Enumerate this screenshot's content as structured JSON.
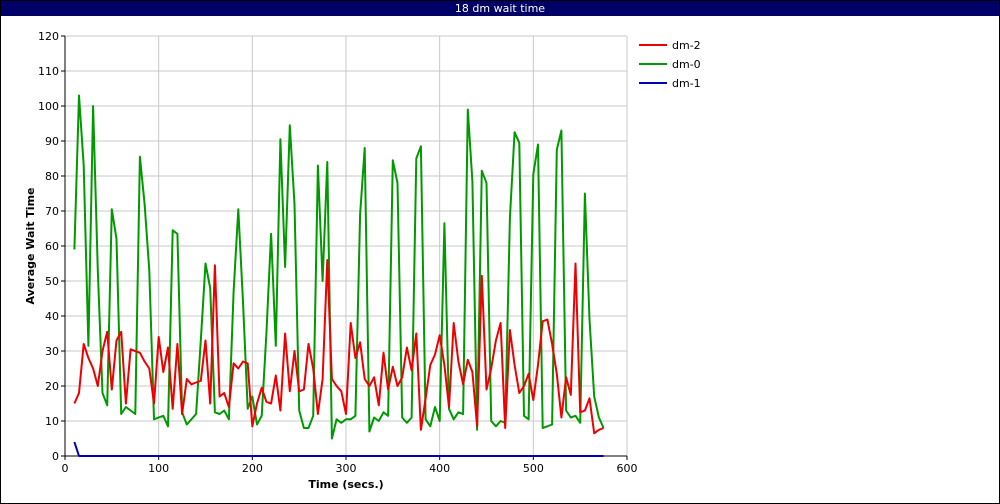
{
  "window": {
    "title": "18 dm wait time"
  },
  "chart_data": {
    "type": "line",
    "title": "18 dm wait time",
    "xlabel": "Time (secs.)",
    "ylabel": "Average Wait Time",
    "xlim": [
      0,
      600
    ],
    "ylim": [
      0,
      120
    ],
    "x_ticks": [
      0,
      100,
      200,
      300,
      400,
      500,
      600
    ],
    "y_ticks": [
      0,
      10,
      20,
      30,
      40,
      50,
      60,
      70,
      80,
      90,
      100,
      110,
      120
    ],
    "grid": true,
    "legend_position": "right",
    "series": [
      {
        "name": "dm-2",
        "color": "#ee0000",
        "points": [
          [
            10,
            15
          ],
          [
            15,
            18
          ],
          [
            20,
            32
          ],
          [
            25,
            28
          ],
          [
            30,
            25
          ],
          [
            35,
            20
          ],
          [
            40,
            30
          ],
          [
            45,
            35.5
          ],
          [
            50,
            19
          ],
          [
            55,
            33
          ],
          [
            60,
            35.5
          ],
          [
            65,
            15
          ],
          [
            70,
            30.5
          ],
          [
            80,
            29.5
          ],
          [
            85,
            27
          ],
          [
            90,
            25
          ],
          [
            95,
            15
          ],
          [
            100,
            34
          ],
          [
            105,
            24
          ],
          [
            110,
            31
          ],
          [
            115,
            13.5
          ],
          [
            120,
            32
          ],
          [
            125,
            12
          ],
          [
            130,
            22
          ],
          [
            135,
            20.5
          ],
          [
            140,
            21
          ],
          [
            145,
            21.5
          ],
          [
            150,
            33
          ],
          [
            155,
            15
          ],
          [
            160,
            54.5
          ],
          [
            165,
            17
          ],
          [
            170,
            18
          ],
          [
            175,
            14
          ],
          [
            180,
            26.5
          ],
          [
            185,
            25
          ],
          [
            190,
            27
          ],
          [
            195,
            26.5
          ],
          [
            200,
            8.5
          ],
          [
            205,
            15
          ],
          [
            210,
            19.5
          ],
          [
            215,
            15.5
          ],
          [
            220,
            15
          ],
          [
            225,
            23
          ],
          [
            230,
            13
          ],
          [
            235,
            35
          ],
          [
            240,
            18.5
          ],
          [
            245,
            30
          ],
          [
            250,
            18.5
          ],
          [
            255,
            19
          ],
          [
            260,
            32
          ],
          [
            265,
            25
          ],
          [
            270,
            12
          ],
          [
            275,
            22
          ],
          [
            280,
            56
          ],
          [
            285,
            22
          ],
          [
            290,
            20
          ],
          [
            295,
            18.5
          ],
          [
            300,
            12
          ],
          [
            305,
            38
          ],
          [
            310,
            28
          ],
          [
            315,
            32.5
          ],
          [
            320,
            22
          ],
          [
            325,
            20
          ],
          [
            330,
            22.5
          ],
          [
            335,
            14.5
          ],
          [
            340,
            29.5
          ],
          [
            345,
            19
          ],
          [
            350,
            25.5
          ],
          [
            355,
            20
          ],
          [
            360,
            22.5
          ],
          [
            365,
            31
          ],
          [
            370,
            24.5
          ],
          [
            375,
            35
          ],
          [
            380,
            7.5
          ],
          [
            385,
            16.5
          ],
          [
            390,
            26
          ],
          [
            395,
            29
          ],
          [
            400,
            34.5
          ],
          [
            405,
            26
          ],
          [
            410,
            14
          ],
          [
            415,
            38
          ],
          [
            420,
            27
          ],
          [
            425,
            20.5
          ],
          [
            430,
            27.5
          ],
          [
            435,
            24
          ],
          [
            440,
            8.5
          ],
          [
            445,
            51.5
          ],
          [
            450,
            19
          ],
          [
            455,
            25
          ],
          [
            460,
            33
          ],
          [
            465,
            38
          ],
          [
            470,
            8
          ],
          [
            475,
            36
          ],
          [
            480,
            26
          ],
          [
            485,
            18
          ],
          [
            490,
            20
          ],
          [
            495,
            23.5
          ],
          [
            500,
            16
          ],
          [
            505,
            26
          ],
          [
            510,
            38.5
          ],
          [
            515,
            39
          ],
          [
            520,
            32
          ],
          [
            525,
            23.5
          ],
          [
            530,
            11
          ],
          [
            535,
            22.5
          ],
          [
            540,
            17.5
          ],
          [
            545,
            55
          ],
          [
            550,
            12.5
          ],
          [
            555,
            13
          ],
          [
            560,
            16.5
          ],
          [
            565,
            6.5
          ],
          [
            570,
            7.5
          ],
          [
            575,
            8
          ]
        ]
      },
      {
        "name": "dm-0",
        "color": "#009900",
        "points": [
          [
            10,
            59
          ],
          [
            15,
            103
          ],
          [
            20,
            83
          ],
          [
            25,
            31.5
          ],
          [
            30,
            100
          ],
          [
            35,
            53
          ],
          [
            40,
            18
          ],
          [
            45,
            14.5
          ],
          [
            50,
            70.5
          ],
          [
            55,
            62
          ],
          [
            60,
            12
          ],
          [
            65,
            14
          ],
          [
            70,
            13
          ],
          [
            75,
            12
          ],
          [
            80,
            85.5
          ],
          [
            85,
            72
          ],
          [
            90,
            53
          ],
          [
            95,
            10.5
          ],
          [
            100,
            11
          ],
          [
            105,
            11.5
          ],
          [
            110,
            8.5
          ],
          [
            115,
            64.5
          ],
          [
            120,
            63.5
          ],
          [
            125,
            12.5
          ],
          [
            130,
            9
          ],
          [
            135,
            10.5
          ],
          [
            140,
            12
          ],
          [
            145,
            33
          ],
          [
            150,
            55
          ],
          [
            155,
            48
          ],
          [
            160,
            12.5
          ],
          [
            165,
            12
          ],
          [
            170,
            13
          ],
          [
            175,
            10.5
          ],
          [
            180,
            47
          ],
          [
            185,
            70.5
          ],
          [
            190,
            44
          ],
          [
            195,
            13.5
          ],
          [
            200,
            17
          ],
          [
            205,
            9
          ],
          [
            210,
            11.5
          ],
          [
            215,
            35
          ],
          [
            220,
            63.5
          ],
          [
            225,
            31.5
          ],
          [
            230,
            90.5
          ],
          [
            235,
            54
          ],
          [
            240,
            94.5
          ],
          [
            245,
            72
          ],
          [
            250,
            13
          ],
          [
            255,
            8
          ],
          [
            260,
            8
          ],
          [
            265,
            11.5
          ],
          [
            270,
            83
          ],
          [
            275,
            50
          ],
          [
            280,
            84
          ],
          [
            285,
            5
          ],
          [
            290,
            10.5
          ],
          [
            295,
            9.5
          ],
          [
            300,
            10.5
          ],
          [
            305,
            10.5
          ],
          [
            310,
            11.5
          ],
          [
            315,
            69
          ],
          [
            320,
            88
          ],
          [
            325,
            7
          ],
          [
            330,
            11
          ],
          [
            335,
            10
          ],
          [
            340,
            12.5
          ],
          [
            345,
            11.5
          ],
          [
            350,
            84.5
          ],
          [
            355,
            78
          ],
          [
            360,
            11
          ],
          [
            365,
            9.5
          ],
          [
            370,
            11
          ],
          [
            375,
            85
          ],
          [
            380,
            88.5
          ],
          [
            385,
            10.5
          ],
          [
            390,
            8.5
          ],
          [
            395,
            14
          ],
          [
            400,
            10
          ],
          [
            405,
            66.5
          ],
          [
            410,
            13.5
          ],
          [
            415,
            10.5
          ],
          [
            420,
            12.5
          ],
          [
            425,
            12
          ],
          [
            430,
            99
          ],
          [
            435,
            78.5
          ],
          [
            440,
            7.5
          ],
          [
            445,
            81.5
          ],
          [
            450,
            78
          ],
          [
            455,
            10
          ],
          [
            460,
            8.5
          ],
          [
            465,
            10
          ],
          [
            470,
            9.5
          ],
          [
            475,
            68
          ],
          [
            480,
            92.5
          ],
          [
            485,
            89.5
          ],
          [
            490,
            11.5
          ],
          [
            495,
            10.5
          ],
          [
            500,
            80.5
          ],
          [
            505,
            89
          ],
          [
            510,
            8
          ],
          [
            515,
            8.5
          ],
          [
            520,
            9
          ],
          [
            525,
            87.5
          ],
          [
            530,
            93
          ],
          [
            535,
            13
          ],
          [
            540,
            11
          ],
          [
            545,
            11.5
          ],
          [
            550,
            9.5
          ],
          [
            555,
            75
          ],
          [
            560,
            39
          ],
          [
            565,
            17
          ],
          [
            570,
            11
          ],
          [
            575,
            8
          ]
        ]
      },
      {
        "name": "dm-1",
        "color": "#0000bb",
        "points": [
          [
            10,
            4
          ],
          [
            15,
            0
          ],
          [
            20,
            0
          ],
          [
            575,
            0
          ]
        ]
      }
    ]
  }
}
